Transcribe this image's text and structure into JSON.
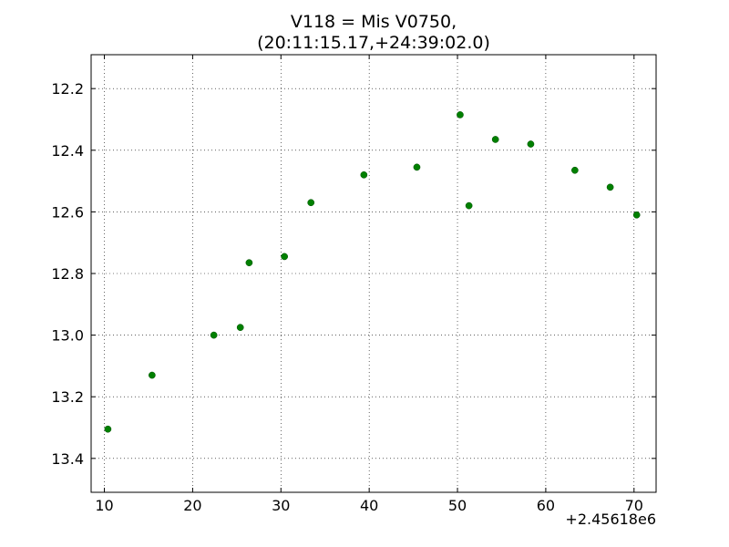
{
  "chart_data": {
    "type": "scatter",
    "title_lines": [
      "V118 = Mis V0750,",
      "(20:11:15.17,+24:39:02.0)"
    ],
    "xlabel": "",
    "ylabel": "",
    "x_offset_label": "+2.45618e6",
    "xlim": [
      8.5,
      72.5
    ],
    "ylim": [
      13.51,
      12.09
    ],
    "y_inverted": true,
    "grid": true,
    "x_ticks": [
      10,
      20,
      30,
      40,
      50,
      60,
      70
    ],
    "x_tick_labels": [
      "10",
      "20",
      "30",
      "40",
      "50",
      "60",
      "70"
    ],
    "y_ticks": [
      12.2,
      12.4,
      12.6,
      12.8,
      13.0,
      13.2,
      13.4
    ],
    "y_tick_labels": [
      "12.2",
      "12.4",
      "12.6",
      "12.8",
      "13.0",
      "13.2",
      "13.4"
    ],
    "marker_color": "#008000",
    "points": [
      {
        "x": 10.4,
        "y": 13.305
      },
      {
        "x": 15.4,
        "y": 13.13
      },
      {
        "x": 22.4,
        "y": 13.0
      },
      {
        "x": 25.4,
        "y": 12.975
      },
      {
        "x": 26.4,
        "y": 12.765
      },
      {
        "x": 30.4,
        "y": 12.745
      },
      {
        "x": 33.4,
        "y": 12.57
      },
      {
        "x": 39.4,
        "y": 12.48
      },
      {
        "x": 45.4,
        "y": 12.455
      },
      {
        "x": 50.3,
        "y": 12.285
      },
      {
        "x": 51.3,
        "y": 12.58
      },
      {
        "x": 54.3,
        "y": 12.365
      },
      {
        "x": 58.3,
        "y": 12.38
      },
      {
        "x": 63.3,
        "y": 12.465
      },
      {
        "x": 67.3,
        "y": 12.52
      },
      {
        "x": 70.3,
        "y": 12.61
      }
    ]
  }
}
